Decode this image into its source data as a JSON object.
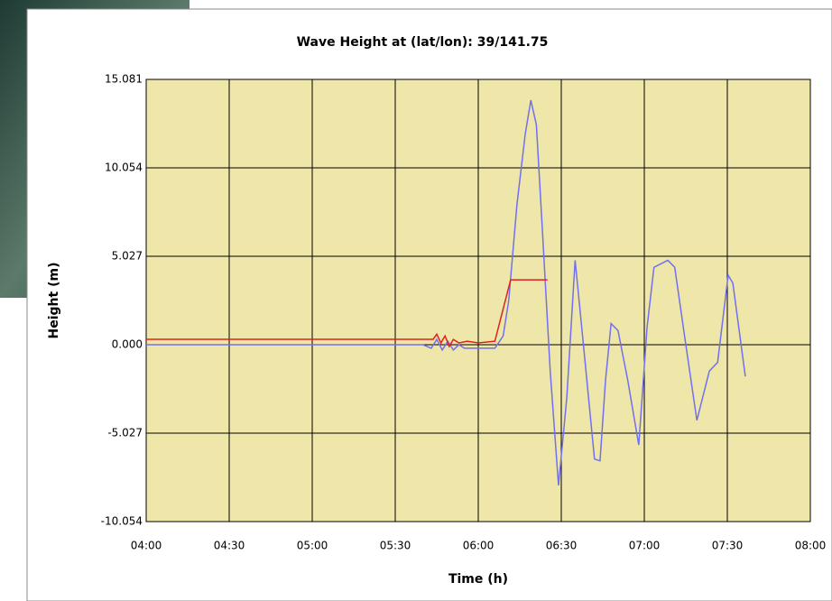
{
  "chart_data": {
    "type": "line",
    "title": "Wave Height at (lat/lon): 39/141.75",
    "x_label": "Time (h)",
    "y_label": "Height (m)",
    "xlim": [
      240,
      480
    ],
    "xticks": [
      {
        "value": 240,
        "label": "04:00"
      },
      {
        "value": 270,
        "label": "04:30"
      },
      {
        "value": 300,
        "label": "05:00"
      },
      {
        "value": 330,
        "label": "05:30"
      },
      {
        "value": 360,
        "label": "06:00"
      },
      {
        "value": 390,
        "label": "06:30"
      },
      {
        "value": 420,
        "label": "07:00"
      },
      {
        "value": 450,
        "label": "07:30"
      },
      {
        "value": 480,
        "label": "08:00"
      }
    ],
    "ylim": [
      -10.054,
      15.081
    ],
    "yticks": [
      -10.054,
      -5.027,
      {
        "value": 0,
        "label": "0.000"
      },
      5.027,
      10.054,
      15.081
    ],
    "grid": true,
    "plot_background": "#efe6a9",
    "series": [
      {
        "color": "#7070f0",
        "x": [
          240,
          340,
          343,
          345,
          347,
          349,
          351,
          353,
          355,
          358,
          366,
          369,
          371,
          374,
          377,
          379,
          381,
          383,
          386,
          389,
          392,
          395,
          398,
          402,
          404,
          406,
          408,
          410.5,
          414,
          418,
          421,
          423.5,
          428.5,
          431,
          435,
          439,
          443.5,
          446.5,
          450.3,
          452,
          456.5
        ],
        "values": [
          0,
          0,
          -0.2,
          0.3,
          -0.3,
          0.2,
          -0.3,
          0,
          -0.2,
          -0.2,
          -0.2,
          0.5,
          2.5,
          8,
          12,
          13.9,
          12.5,
          7,
          -1.5,
          -8,
          -3,
          4.8,
          0,
          -6.5,
          -6.6,
          -2,
          1.2,
          0.8,
          -2,
          -5.7,
          1,
          4.4,
          4.8,
          4.4,
          0,
          -4.3,
          -1.5,
          -1,
          3.95,
          3.5,
          -1.8
        ]
      },
      {
        "color": "#e02020",
        "x": [
          240,
          343.7,
          345,
          346.5,
          348,
          349.5,
          351,
          353,
          356,
          360,
          366,
          371.7,
          385
        ],
        "values": [
          0.31,
          0.31,
          0.6,
          0.1,
          0.5,
          -0.1,
          0.3,
          0.1,
          0.2,
          0.1,
          0.2,
          3.69,
          3.69
        ]
      }
    ]
  }
}
